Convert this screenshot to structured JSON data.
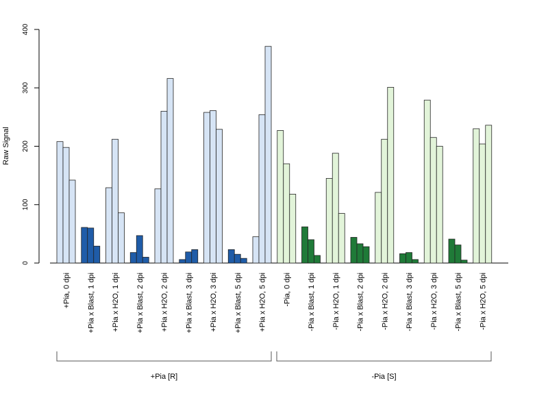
{
  "colors": {
    "pia_r_light": "#d6e4f5",
    "pia_r_dark": "#1f5ca8",
    "pia_s_light": "#e2f4d9",
    "pia_s_dark": "#1f7a38",
    "bar_border": "#222222",
    "axis": "#000000"
  },
  "chart_data": {
    "type": "bar",
    "title": "",
    "xlabel": "",
    "ylabel": "Raw Signal",
    "ylim": [
      0,
      400
    ],
    "yticks": [
      0,
      100,
      200,
      300,
      400
    ],
    "grid": false,
    "legend": "none",
    "categories": [
      {
        "label": "+Pia, 0 dpi",
        "values": [
          208,
          198,
          142
        ],
        "shade": "light",
        "group": 0
      },
      {
        "label": "+Pia x Blast, 1 dpi",
        "values": [
          61,
          60,
          29
        ],
        "shade": "dark",
        "group": 0
      },
      {
        "label": "+Pia x H2O, 1 dpi",
        "values": [
          129,
          212,
          86
        ],
        "shade": "light",
        "group": 0
      },
      {
        "label": "+Pia x Blast, 2 dpi",
        "values": [
          18,
          47,
          10
        ],
        "shade": "dark",
        "group": 0
      },
      {
        "label": "+Pia x H2O, 2 dpi",
        "values": [
          127,
          260,
          316
        ],
        "shade": "light",
        "group": 0
      },
      {
        "label": "+Pia x Blast, 3 dpi",
        "values": [
          6,
          19,
          23
        ],
        "shade": "dark",
        "group": 0
      },
      {
        "label": "+Pia x H2O, 3 dpi",
        "values": [
          258,
          261,
          229
        ],
        "shade": "light",
        "group": 0
      },
      {
        "label": "+Pia x Blast, 5 dpi",
        "values": [
          23,
          15,
          8
        ],
        "shade": "dark",
        "group": 0
      },
      {
        "label": "+Pia x H2O, 5 dpi",
        "values": [
          45,
          254,
          371
        ],
        "shade": "light",
        "group": 0
      },
      {
        "label": "-Pia, 0 dpi",
        "values": [
          227,
          170,
          118
        ],
        "shade": "light",
        "group": 1
      },
      {
        "label": "-Pia x Blast, 1 dpi",
        "values": [
          62,
          40,
          13
        ],
        "shade": "dark",
        "group": 1
      },
      {
        "label": "-Pia x H2O, 1 dpi",
        "values": [
          145,
          188,
          85
        ],
        "shade": "light",
        "group": 1
      },
      {
        "label": "-Pia x Blast, 2 dpi",
        "values": [
          44,
          33,
          28
        ],
        "shade": "dark",
        "group": 1
      },
      {
        "label": "-Pia x H2O, 2 dpi",
        "values": [
          121,
          212,
          301
        ],
        "shade": "light",
        "group": 1
      },
      {
        "label": "-Pia x Blast, 3 dpi",
        "values": [
          16,
          18,
          6
        ],
        "shade": "dark",
        "group": 1
      },
      {
        "label": "-Pia x H2O, 3 dpi",
        "values": [
          279,
          215,
          200
        ],
        "shade": "light",
        "group": 1
      },
      {
        "label": "-Pia x Blast, 5 dpi",
        "values": [
          41,
          31,
          5
        ],
        "shade": "dark",
        "group": 1
      },
      {
        "label": "-Pia x H2O, 5 dpi",
        "values": [
          230,
          204,
          236
        ],
        "shade": "light",
        "group": 1
      }
    ],
    "groups": [
      {
        "label": "+Pia [R]",
        "color_light": "pia_r_light",
        "color_dark": "pia_r_dark"
      },
      {
        "label": "-Pia [S]",
        "color_light": "pia_s_light",
        "color_dark": "pia_s_dark"
      }
    ]
  }
}
